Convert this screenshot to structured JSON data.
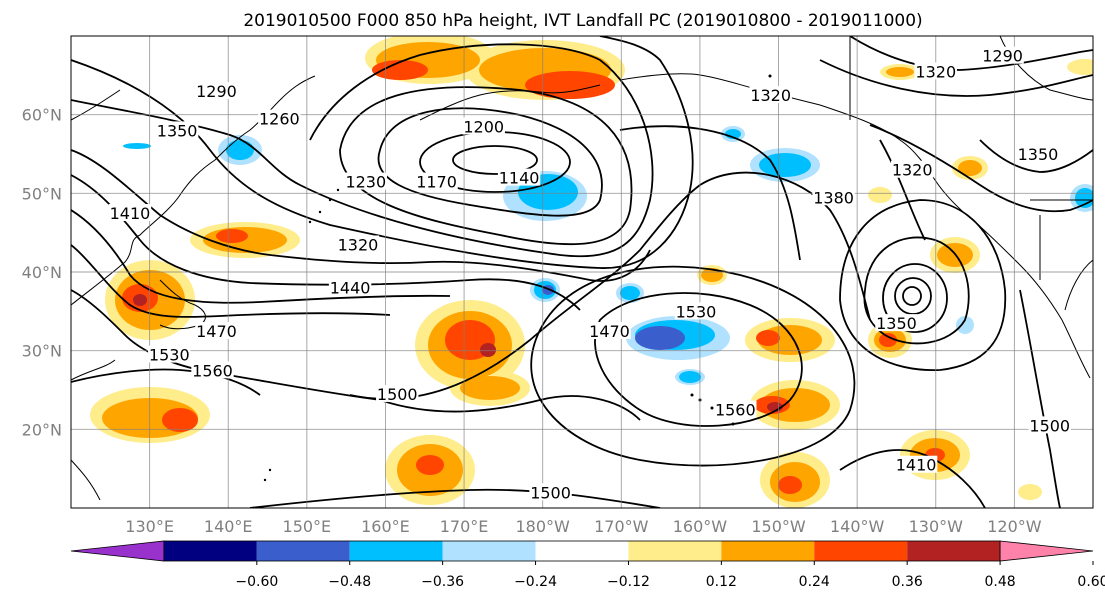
{
  "title": "2019010500 F000 850 hPa height, IVT Landfall PC (2019010800 - 2019011000)",
  "map": {
    "lon_range": [
      120,
      250
    ],
    "lat_range": [
      10,
      70
    ],
    "lon_ticks": [
      {
        "lon": 130,
        "label": "130°E"
      },
      {
        "lon": 140,
        "label": "140°E"
      },
      {
        "lon": 150,
        "label": "150°E"
      },
      {
        "lon": 160,
        "label": "160°E"
      },
      {
        "lon": 170,
        "label": "170°E"
      },
      {
        "lon": 180,
        "label": "180°W"
      },
      {
        "lon": 190,
        "label": "170°W"
      },
      {
        "lon": 200,
        "label": "160°W"
      },
      {
        "lon": 210,
        "label": "150°W"
      },
      {
        "lon": 220,
        "label": "140°W"
      },
      {
        "lon": 230,
        "label": "130°W"
      },
      {
        "lon": 240,
        "label": "120°W"
      }
    ],
    "lat_ticks": [
      {
        "lat": 20,
        "label": "20°N"
      },
      {
        "lat": 30,
        "label": "30°N"
      },
      {
        "lat": 40,
        "label": "40°N"
      },
      {
        "lat": 50,
        "label": "50°N"
      },
      {
        "lat": 60,
        "label": "60°N"
      }
    ],
    "grid": true,
    "contour_labels": [
      {
        "text": "1290",
        "lon": 138.5,
        "lat": 63
      },
      {
        "text": "1260",
        "lon": 146.5,
        "lat": 59.5
      },
      {
        "text": "1350",
        "lon": 133.5,
        "lat": 58
      },
      {
        "text": "1230",
        "lon": 157.5,
        "lat": 51.5
      },
      {
        "text": "1200",
        "lon": 172.5,
        "lat": 58.5
      },
      {
        "text": "1170",
        "lon": 166.5,
        "lat": 51.5
      },
      {
        "text": "1140",
        "lon": 177,
        "lat": 52
      },
      {
        "text": "1410",
        "lon": 127.5,
        "lat": 47.5
      },
      {
        "text": "1320",
        "lon": 156.5,
        "lat": 43.5
      },
      {
        "text": "1440",
        "lon": 155.5,
        "lat": 38
      },
      {
        "text": "1470",
        "lon": 138.5,
        "lat": 32.5
      },
      {
        "text": "1530",
        "lon": 132.5,
        "lat": 29.5
      },
      {
        "text": "1560",
        "lon": 138,
        "lat": 27.5
      },
      {
        "text": "1500",
        "lon": 161.5,
        "lat": 24.5
      },
      {
        "text": "1470",
        "lon": 188.5,
        "lat": 32.5
      },
      {
        "text": "1530",
        "lon": 199.5,
        "lat": 35
      },
      {
        "text": "1560",
        "lon": 204.5,
        "lat": 22.5
      },
      {
        "text": "1500",
        "lon": 181,
        "lat": 12
      },
      {
        "text": "1320",
        "lon": 209,
        "lat": 62.5
      },
      {
        "text": "1380",
        "lon": 217,
        "lat": 49.5
      },
      {
        "text": "1320",
        "lon": 230,
        "lat": 65.5
      },
      {
        "text": "1290",
        "lon": 238.5,
        "lat": 67.5
      },
      {
        "text": "1320",
        "lon": 227,
        "lat": 53
      },
      {
        "text": "1350",
        "lon": 243,
        "lat": 55
      },
      {
        "text": "1350",
        "lon": 225,
        "lat": 33.5
      },
      {
        "text": "1500",
        "lon": 244.5,
        "lat": 20.5
      },
      {
        "text": "1410",
        "lon": 227.5,
        "lat": 15.5
      }
    ]
  },
  "colorbar": {
    "colors": [
      "#9932CC",
      "#000080",
      "#3A5FCD",
      "#00BFFF",
      "#B0E2FF",
      "#FFFFFF",
      "#FFEC8B",
      "#FFA500",
      "#FF4500",
      "#B22222",
      "#FF82AB"
    ],
    "tick_labels": [
      "−0.60",
      "−0.48",
      "−0.36",
      "−0.24",
      "−0.12",
      "0.12",
      "0.24",
      "0.36",
      "0.48",
      "0.60"
    ]
  }
}
